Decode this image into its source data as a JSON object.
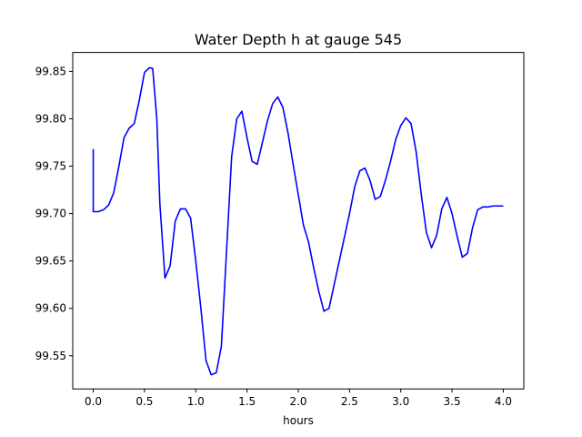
{
  "chart_data": {
    "type": "line",
    "title": "Water Depth h at gauge 545",
    "xlabel": "hours",
    "ylabel": "",
    "xlim": [
      -0.2,
      4.2
    ],
    "ylim": [
      99.515,
      99.87
    ],
    "x_ticks": [
      0.0,
      0.5,
      1.0,
      1.5,
      2.0,
      2.5,
      3.0,
      3.5,
      4.0
    ],
    "x_tick_labels": [
      "0.0",
      "0.5",
      "1.0",
      "1.5",
      "2.0",
      "2.5",
      "3.0",
      "3.5",
      "4.0"
    ],
    "y_ticks": [
      99.55,
      99.6,
      99.65,
      99.7,
      99.75,
      99.8,
      99.85
    ],
    "y_tick_labels": [
      "99.55",
      "99.60",
      "99.65",
      "99.70",
      "99.75",
      "99.80",
      "99.85"
    ],
    "grid": false,
    "series": [
      {
        "color": "#0000ff",
        "x": [
          0.0,
          0.0,
          0.05,
          0.1,
          0.15,
          0.2,
          0.25,
          0.3,
          0.35,
          0.4,
          0.45,
          0.5,
          0.55,
          0.58,
          0.62,
          0.65,
          0.7,
          0.75,
          0.8,
          0.85,
          0.9,
          0.95,
          1.0,
          1.05,
          1.1,
          1.15,
          1.2,
          1.25,
          1.3,
          1.35,
          1.4,
          1.45,
          1.5,
          1.55,
          1.6,
          1.65,
          1.7,
          1.75,
          1.8,
          1.85,
          1.9,
          1.95,
          2.0,
          2.05,
          2.1,
          2.15,
          2.2,
          2.25,
          2.3,
          2.35,
          2.4,
          2.43,
          2.5,
          2.55,
          2.6,
          2.65,
          2.7,
          2.75,
          2.8,
          2.85,
          2.9,
          2.95,
          3.0,
          3.05,
          3.1,
          3.15,
          3.2,
          3.25,
          3.3,
          3.35,
          3.4,
          3.45,
          3.5,
          3.55,
          3.6,
          3.65,
          3.7,
          3.75,
          3.8,
          3.85,
          3.9,
          3.95,
          4.0
        ],
        "y": [
          99.768,
          99.702,
          99.702,
          99.704,
          99.709,
          99.722,
          99.75,
          99.78,
          99.79,
          99.795,
          99.82,
          99.849,
          99.854,
          99.853,
          99.8,
          99.71,
          99.632,
          99.645,
          99.692,
          99.705,
          99.705,
          99.695,
          99.65,
          99.6,
          99.545,
          99.53,
          99.532,
          99.56,
          99.66,
          99.76,
          99.8,
          99.808,
          99.78,
          99.755,
          99.752,
          99.775,
          99.798,
          99.816,
          99.823,
          99.812,
          99.785,
          99.752,
          99.72,
          99.688,
          99.67,
          99.643,
          99.618,
          99.597,
          99.6,
          99.625,
          99.65,
          99.665,
          99.7,
          99.728,
          99.745,
          99.748,
          99.735,
          99.715,
          99.718,
          99.735,
          99.755,
          99.778,
          99.793,
          99.801,
          99.795,
          99.765,
          99.72,
          99.68,
          99.664,
          99.677,
          99.705,
          99.717,
          99.7,
          99.676,
          99.654,
          99.658,
          99.685,
          99.704,
          99.707,
          99.707,
          99.708,
          99.708,
          99.708
        ]
      }
    ]
  }
}
